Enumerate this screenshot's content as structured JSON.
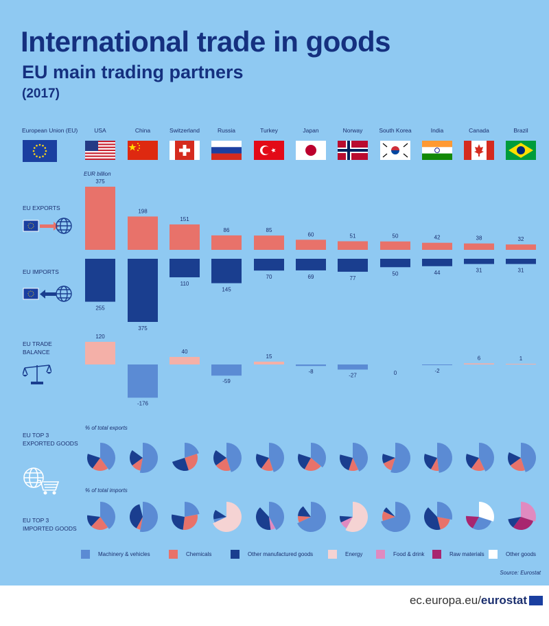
{
  "title": "International trade in goods",
  "subtitle": "EU main trading partners",
  "year": "(2017)",
  "eu_label": "European Union (EU)",
  "unit_label": "EUR billion",
  "pct_exports_label": "% of total exports",
  "pct_imports_label": "% of total imports",
  "row_labels": {
    "exports": "EU EXPORTS",
    "imports": "EU IMPORTS",
    "balance": "EU TRADE\nBALANCE",
    "top_exports": "EU TOP 3\nEXPORTED GOODS",
    "top_imports": "EU TOP 3\nIMPORTED GOODS"
  },
  "source": "Source: Eurostat",
  "footer": {
    "prefix": "ec.europa.eu/",
    "brand": "eurostat"
  },
  "colors": {
    "background": "#8fc9f2",
    "title": "#15307f",
    "exports": "#e8726a",
    "imports": "#1a3e8f",
    "balance_positive": "#f4b0a8",
    "balance_negative": "#5b8bd4"
  },
  "icons": [
    "eu-flag-icon",
    "globe-icon",
    "arrow-right-icon",
    "arrow-left-icon",
    "scales-icon",
    "shopping-cart-icon"
  ],
  "chart_data": {
    "type": "bar",
    "unit": "EUR billion",
    "categories": [
      "USA",
      "China",
      "Switzerland",
      "Russia",
      "Turkey",
      "Japan",
      "Norway",
      "South Korea",
      "India",
      "Canada",
      "Brazil"
    ],
    "series": [
      {
        "name": "EU EXPORTS",
        "values": [
          375,
          198,
          151,
          86,
          85,
          60,
          51,
          50,
          42,
          38,
          32
        ]
      },
      {
        "name": "EU IMPORTS",
        "values": [
          255,
          375,
          110,
          145,
          70,
          69,
          77,
          50,
          44,
          31,
          31
        ]
      },
      {
        "name": "EU TRADE BALANCE",
        "values": [
          120,
          -176,
          40,
          -59,
          15,
          -8,
          -27,
          0,
          -2,
          6,
          1
        ]
      }
    ],
    "goods_categories": [
      {
        "name": "Machinery & vehicles",
        "color": "#5b8bd4"
      },
      {
        "name": "Chemicals",
        "color": "#e8726a"
      },
      {
        "name": "Other manufactured goods",
        "color": "#1a3e8f"
      },
      {
        "name": "Energy",
        "color": "#f5d3d3"
      },
      {
        "name": "Food & drink",
        "color": "#e08ac0"
      },
      {
        "name": "Raw materials",
        "color": "#a8266f"
      },
      {
        "name": "Other goods",
        "color": "#ffffff"
      }
    ],
    "top3_exports_pct": [
      {
        "Machinery & vehicles": 40,
        "Chemicals": 20,
        "Other manufactured goods": 20
      },
      {
        "Machinery & vehicles": 53,
        "Chemicals": 12,
        "Other manufactured goods": 20
      },
      {
        "Machinery & vehicles": 20,
        "Chemicals": 25,
        "Other manufactured goods": 25
      },
      {
        "Machinery & vehicles": 45,
        "Chemicals": 20,
        "Other manufactured goods": 20
      },
      {
        "Machinery & vehicles": 45,
        "Chemicals": 15,
        "Other manufactured goods": 20
      },
      {
        "Machinery & vehicles": 36,
        "Chemicals": 22,
        "Other manufactured goods": 22
      },
      {
        "Machinery & vehicles": 43,
        "Chemicals": 12,
        "Other manufactured goods": 24
      },
      {
        "Machinery & vehicles": 55,
        "Chemicals": 13,
        "Other manufactured goods": 12
      },
      {
        "Machinery & vehicles": 48,
        "Chemicals": 10,
        "Other manufactured goods": 22
      },
      {
        "Machinery & vehicles": 43,
        "Chemicals": 17,
        "Other manufactured goods": 20
      },
      {
        "Machinery & vehicles": 45,
        "Chemicals": 20,
        "Other manufactured goods": 17
      }
    ],
    "top3_imports_pct": [
      {
        "Machinery & vehicles": 40,
        "Chemicals": 22,
        "Other manufactured goods": 15
      },
      {
        "Machinery & vehicles": 53,
        "Chemicals": 5,
        "Other manufactured goods": 38
      },
      {
        "Machinery & vehicles": 22,
        "Chemicals": 30,
        "Other manufactured goods": 26
      },
      {
        "Energy": 68,
        "Machinery & vehicles": 4,
        "Other manufactured goods": 12
      },
      {
        "Machinery & vehicles": 42,
        "Food & drink": 6,
        "Other manufactured goods": 40
      },
      {
        "Machinery & vehicles": 68,
        "Chemicals": 8,
        "Other manufactured goods": 14
      },
      {
        "Energy": 58,
        "Food & drink": 10,
        "Other manufactured goods": 8
      },
      {
        "Machinery & vehicles": 70,
        "Chemicals": 12,
        "Other manufactured goods": 6
      },
      {
        "Machinery & vehicles": 28,
        "Chemicals": 18,
        "Other manufactured goods": 42
      },
      {
        "Other goods": 30,
        "Machinery & vehicles": 28,
        "Raw materials": 18
      },
      {
        "Food & drink": 30,
        "Raw materials": 30,
        "Other manufactured goods": 12
      }
    ]
  }
}
